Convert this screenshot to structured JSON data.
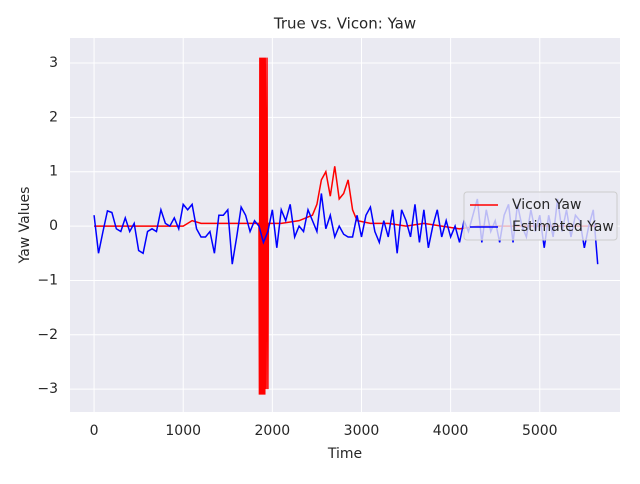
{
  "chart_data": {
    "type": "line",
    "title": "True vs. Vicon: Yaw",
    "x_label": "Time",
    "y_label": "Yaw Values",
    "xlim": [
      -270,
      5900
    ],
    "ylim": [
      -3.42,
      3.46
    ],
    "xticks": [
      0,
      1000,
      2000,
      3000,
      4000,
      5000
    ],
    "yticks": [
      {
        "value": -3,
        "label": "−3"
      },
      {
        "value": -2,
        "label": "−2"
      },
      {
        "value": -1,
        "label": "−1"
      },
      0,
      1,
      2,
      3
    ],
    "grid": true,
    "background": "#eaeaf2",
    "legend": "right",
    "series": [
      {
        "name": "Vicon Yaw",
        "color": "#ff0000",
        "x": [
          0,
          200,
          400,
          600,
          800,
          1000,
          1100,
          1200,
          1400,
          1600,
          1800,
          1850,
          1855,
          1860,
          1870,
          1875,
          1885,
          1890,
          1900,
          1905,
          1915,
          1920,
          1930,
          1940,
          1950,
          1955,
          2100,
          2300,
          2450,
          2500,
          2550,
          2600,
          2650,
          2700,
          2750,
          2800,
          2850,
          2900,
          2950,
          3100,
          3300,
          3500,
          3700,
          3900,
          4100,
          4300,
          4500,
          4700,
          4900,
          5100,
          5300,
          5500,
          5650
        ],
        "values": [
          0,
          0,
          0,
          0,
          0,
          0,
          0.1,
          0.05,
          0.05,
          0.05,
          0.05,
          0.05,
          -3.1,
          3.1,
          -3.1,
          3.1,
          -3.1,
          3.1,
          -3.1,
          3.1,
          -3.1,
          3.1,
          -3.0,
          3.1,
          -3.0,
          0.05,
          0.05,
          0.1,
          0.2,
          0.4,
          0.85,
          1.0,
          0.55,
          1.1,
          0.5,
          0.6,
          0.85,
          0.3,
          0.1,
          0.05,
          0.05,
          0.0,
          0.05,
          0.0,
          -0.05,
          0.0,
          0.0,
          0.0,
          0.0,
          0.0,
          0.0,
          0.0,
          0.0
        ]
      },
      {
        "name": "Estimated Yaw",
        "color": "#0000ff",
        "x": [
          0,
          50,
          100,
          150,
          200,
          250,
          300,
          350,
          400,
          450,
          500,
          550,
          600,
          650,
          700,
          750,
          800,
          850,
          900,
          950,
          1000,
          1050,
          1100,
          1150,
          1200,
          1250,
          1300,
          1350,
          1400,
          1450,
          1500,
          1550,
          1600,
          1650,
          1700,
          1750,
          1800,
          1850,
          1900,
          1950,
          2000,
          2050,
          2100,
          2150,
          2200,
          2250,
          2300,
          2350,
          2400,
          2450,
          2500,
          2550,
          2600,
          2650,
          2700,
          2750,
          2800,
          2850,
          2900,
          2950,
          3000,
          3050,
          3100,
          3150,
          3200,
          3250,
          3300,
          3350,
          3400,
          3450,
          3500,
          3550,
          3600,
          3650,
          3700,
          3750,
          3800,
          3850,
          3900,
          3950,
          4000,
          4050,
          4100,
          4150,
          4200,
          4250,
          4300,
          4350,
          4400,
          4450,
          4500,
          4550,
          4600,
          4650,
          4700,
          4750,
          4800,
          4850,
          4900,
          4950,
          5000,
          5050,
          5100,
          5150,
          5200,
          5250,
          5300,
          5350,
          5400,
          5450,
          5500,
          5550,
          5600,
          5650
        ],
        "values": [
          0.2,
          -0.5,
          -0.1,
          0.28,
          0.25,
          -0.05,
          -0.1,
          0.15,
          -0.1,
          0.05,
          -0.45,
          -0.5,
          -0.1,
          -0.05,
          -0.1,
          0.3,
          0.05,
          0.0,
          0.15,
          -0.05,
          0.4,
          0.3,
          0.4,
          -0.05,
          -0.2,
          -0.2,
          -0.1,
          -0.5,
          0.2,
          0.2,
          0.3,
          -0.7,
          -0.2,
          0.35,
          0.2,
          -0.1,
          0.1,
          0.0,
          -0.3,
          -0.1,
          0.3,
          -0.4,
          0.3,
          0.1,
          0.4,
          -0.2,
          0.0,
          -0.1,
          0.3,
          0.1,
          -0.1,
          0.6,
          -0.05,
          0.2,
          -0.2,
          0.0,
          -0.15,
          -0.2,
          -0.2,
          0.2,
          -0.2,
          0.2,
          0.35,
          -0.1,
          -0.3,
          0.1,
          -0.2,
          0.3,
          -0.5,
          0.3,
          0.1,
          -0.2,
          0.4,
          -0.3,
          0.3,
          -0.4,
          0.0,
          0.3,
          -0.2,
          0.1,
          -0.2,
          0.0,
          -0.3,
          0.1,
          -0.1,
          0.2,
          0.5,
          -0.3,
          0.3,
          -0.1,
          0.1,
          -0.3,
          0.2,
          0.4,
          -0.3,
          0.4,
          0.0,
          -0.2,
          0.3,
          -0.1,
          0.2,
          -0.4,
          0.2,
          -0.2,
          0.5,
          -0.1,
          0.3,
          -0.2,
          0.2,
          0.1,
          -0.4,
          0.0,
          0.3,
          -0.7
        ]
      }
    ]
  }
}
